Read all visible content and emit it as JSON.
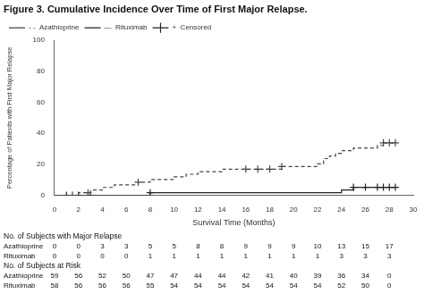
{
  "chart_data": {
    "type": "step",
    "title": "Figure 3. Cumulative Incidence Over Time of First Major Relapse.",
    "xlabel": "Survival Time (Months)",
    "ylabel": "Percentage of Patients with First Major Relapse",
    "xlim": [
      0,
      30
    ],
    "ylim": [
      0,
      100
    ],
    "xticks": [
      0,
      2,
      4,
      6,
      8,
      10,
      12,
      14,
      16,
      18,
      20,
      22,
      24,
      26,
      28,
      30
    ],
    "yticks": [
      0,
      20,
      40,
      60,
      80,
      100
    ],
    "grid": false,
    "legend": "upper left",
    "series": [
      {
        "name": "- -  Azathioprine",
        "color": "#444444",
        "line_style": "dashed",
        "x": [
          0,
          1.5,
          2.0,
          2.5,
          3.0,
          3.5,
          4.0,
          5.0,
          6.0,
          7.0,
          8.0,
          9.0,
          10.0,
          11.0,
          12.0,
          13.0,
          14.0,
          15.0,
          16.0,
          17.0,
          18.0,
          19.0,
          20.0,
          21.0,
          22.0,
          22.5,
          23.0,
          23.5,
          24.0,
          25.0,
          26.0,
          27.0,
          27.5,
          28.0,
          28.5
        ],
        "values": [
          0,
          0,
          1.7,
          1.7,
          3.4,
          3.4,
          5.1,
          6.8,
          6.8,
          8.5,
          10.2,
          10.2,
          11.9,
          13.6,
          15.3,
          15.3,
          16.9,
          16.9,
          16.9,
          16.9,
          16.9,
          18.6,
          18.6,
          18.6,
          20.3,
          23.7,
          25.4,
          27.1,
          28.8,
          30.5,
          30.5,
          32.2,
          33.9,
          33.9,
          33.9
        ]
      },
      {
        "name": "—  Rituximab",
        "color": "#222222",
        "line_style": "solid",
        "x": [
          0,
          1.0,
          2.0,
          3.0,
          4.0,
          5.0,
          6.0,
          7.0,
          8.0,
          9.0,
          10.0,
          11.0,
          12.0,
          13.0,
          14.0,
          15.0,
          16.0,
          17.0,
          18.0,
          19.0,
          20.0,
          21.0,
          22.0,
          23.0,
          24.0,
          25.0,
          26.0,
          27.0,
          27.5,
          28.0,
          28.5
        ],
        "values": [
          0,
          0,
          0,
          0,
          0,
          0,
          0,
          0,
          1.7,
          1.7,
          1.7,
          1.7,
          1.7,
          1.7,
          1.7,
          1.7,
          1.7,
          1.7,
          1.7,
          1.7,
          1.7,
          1.7,
          1.7,
          1.7,
          3.4,
          5.2,
          5.2,
          5.2,
          5.2,
          5.2,
          5.2
        ]
      },
      {
        "type": "scatter",
        "marker": "+",
        "color": "#444444",
        "x": [
          1.5,
          2.8,
          7.0,
          16.0,
          17.0,
          18.0,
          19.0,
          27.5,
          28.0,
          28.5
        ],
        "values": [
          0,
          1.7,
          8.5,
          16.9,
          16.9,
          16.9,
          18.6,
          33.9,
          33.9,
          33.9
        ]
      },
      {
        "name": "+  Censored",
        "type": "scatter",
        "marker": "+",
        "color": "#222222",
        "x": [
          1.0,
          2.0,
          3.0,
          8.0,
          25.0,
          26.0,
          27.0,
          27.5,
          28.0,
          28.5
        ],
        "values": [
          0,
          0,
          0,
          1.7,
          5.2,
          5.2,
          5.2,
          5.2,
          5.2,
          5.2
        ]
      }
    ],
    "table": {
      "x": [
        0,
        2,
        4,
        6,
        8,
        10,
        12,
        14,
        16,
        18,
        20,
        22,
        24,
        26,
        28
      ],
      "sections": [
        {
          "title": "No. of Subjects with Major Relapse",
          "rows": [
            {
              "name": "Azathioprine",
              "values": [
                0,
                0,
                3,
                3,
                5,
                5,
                8,
                8,
                9,
                9,
                9,
                10,
                13,
                15,
                17
              ]
            },
            {
              "name": "Rituximab",
              "values": [
                0,
                0,
                0,
                0,
                1,
                1,
                1,
                1,
                1,
                1,
                1,
                1,
                3,
                3,
                3
              ]
            }
          ]
        },
        {
          "title": "No. of Subjects at Risk",
          "rows": [
            {
              "name": "Azathioprine",
              "values": [
                59,
                56,
                52,
                50,
                47,
                47,
                44,
                44,
                42,
                41,
                40,
                39,
                36,
                34,
                0
              ]
            },
            {
              "name": "Rituximab",
              "values": [
                58,
                56,
                56,
                56,
                55,
                54,
                54,
                54,
                54,
                54,
                54,
                54,
                52,
                50,
                0
              ]
            }
          ]
        }
      ]
    }
  }
}
